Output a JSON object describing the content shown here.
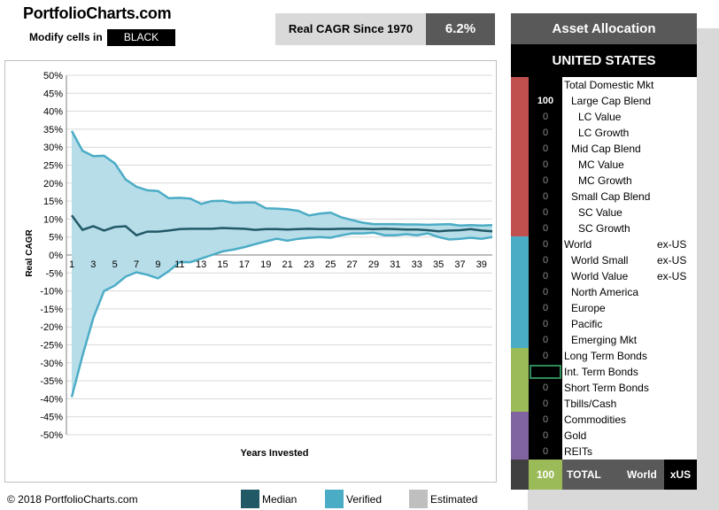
{
  "header": {
    "site_title": "PortfolioCharts.com",
    "modify_label": "Modify cells in",
    "modify_color": "BLACK",
    "cagr_label": "Real CAGR Since 1970",
    "cagr_value": "6.2%"
  },
  "chart_data": {
    "type": "area",
    "xlabel": "Years Invested",
    "ylabel": "Real CAGR",
    "x_tick_labels": [
      "1",
      "3",
      "5",
      "7",
      "9",
      "11",
      "13",
      "15",
      "17",
      "19",
      "21",
      "23",
      "25",
      "27",
      "29",
      "31",
      "33",
      "35",
      "37",
      "39"
    ],
    "y_tick_labels": [
      "50%",
      "45%",
      "40%",
      "35%",
      "30%",
      "25%",
      "20%",
      "15%",
      "10%",
      "5%",
      "0%",
      "-5%",
      "-10%",
      "-15%",
      "-20%",
      "-25%",
      "-30%",
      "-35%",
      "-40%",
      "-45%",
      "-50%"
    ],
    "ylim": [
      -50,
      50
    ],
    "x": [
      1,
      2,
      3,
      4,
      5,
      6,
      7,
      8,
      9,
      10,
      11,
      12,
      13,
      14,
      15,
      16,
      17,
      18,
      19,
      20,
      21,
      22,
      23,
      24,
      25,
      26,
      27,
      28,
      29,
      30,
      31,
      32,
      33,
      34,
      35,
      36,
      37,
      38,
      39,
      40
    ],
    "series": [
      {
        "name": "Median",
        "color": "#215967",
        "values": [
          11,
          7,
          8,
          6.8,
          7.8,
          8,
          5.5,
          6.5,
          6.5,
          6.8,
          7.2,
          7.3,
          7.3,
          7.3,
          7.5,
          7.4,
          7.3,
          7,
          7.2,
          7.2,
          7.1,
          7.2,
          7.3,
          7.2,
          7.2,
          7.3,
          7.3,
          7.3,
          7.2,
          7.3,
          7.2,
          7.1,
          7.1,
          6.9,
          6.6,
          6.8,
          6.9,
          7.2,
          6.8,
          6.6
        ]
      },
      {
        "name": "Verified",
        "color": "#4bacc6",
        "band": "max",
        "values": [
          34.5,
          29,
          27.5,
          27.6,
          25.5,
          21,
          19,
          18,
          17.8,
          15.8,
          15.9,
          15.7,
          14.2,
          15,
          15.1,
          14.5,
          14.6,
          14.6,
          13,
          12.9,
          12.7,
          12.3,
          11,
          11.5,
          11.8,
          10.5,
          9.7,
          9,
          8.6,
          8.6,
          8.6,
          8.5,
          8.5,
          8.4,
          8.5,
          8.6,
          8.2,
          8.3,
          8.2,
          8.3
        ]
      },
      {
        "name": "Verified",
        "color": "#4bacc6",
        "band": "min",
        "values": [
          -39.5,
          -28,
          -17.5,
          -10,
          -8.5,
          -6,
          -4.8,
          -5.5,
          -6.5,
          -4.5,
          -2,
          -2,
          -1,
          0,
          1,
          1.5,
          2.2,
          3,
          3.8,
          4.5,
          4,
          4.5,
          4.8,
          5,
          4.8,
          5.5,
          6,
          6,
          6.2,
          5.5,
          5.5,
          5.8,
          5.5,
          6,
          5,
          4.3,
          4.5,
          4.8,
          4.5,
          5
        ]
      }
    ],
    "legend": [
      {
        "label": "Median",
        "color": "#215967"
      },
      {
        "label": "Verified",
        "color": "#4bacc6"
      },
      {
        "label": "Estimated",
        "color": "#bfbfbf"
      }
    ],
    "band_fill": "#b7dde8",
    "grid": true,
    "legend_position": "bottom"
  },
  "footer": {
    "copyright": "© 2018 PortfolioCharts.com"
  },
  "allocation": {
    "title": "Asset Allocation",
    "country": "UNITED STATES",
    "group_colors": {
      "equity_us": "#c0504d",
      "equity_world": "#4bacc6",
      "bonds": "#9bbb59",
      "other": "#8064a2"
    },
    "rows": [
      {
        "value": "",
        "label": "Total Domestic Mkt",
        "suffix": "",
        "indent": 0
      },
      {
        "value": "100",
        "label": "Large Cap Blend",
        "suffix": "",
        "indent": 1
      },
      {
        "value": "0",
        "label": "LC Value",
        "suffix": "",
        "indent": 2
      },
      {
        "value": "0",
        "label": "LC Growth",
        "suffix": "",
        "indent": 2
      },
      {
        "value": "0",
        "label": "Mid Cap Blend",
        "suffix": "",
        "indent": 1
      },
      {
        "value": "0",
        "label": "MC Value",
        "suffix": "",
        "indent": 2
      },
      {
        "value": "0",
        "label": "MC Growth",
        "suffix": "",
        "indent": 2
      },
      {
        "value": "0",
        "label": "Small Cap Blend",
        "suffix": "",
        "indent": 1
      },
      {
        "value": "0",
        "label": "SC Value",
        "suffix": "",
        "indent": 2
      },
      {
        "value": "0",
        "label": "SC Growth",
        "suffix": "",
        "indent": 2
      },
      {
        "value": "0",
        "label": "World",
        "suffix": "ex-US",
        "indent": 0
      },
      {
        "value": "0",
        "label": "World Small",
        "suffix": "ex-US",
        "indent": 1
      },
      {
        "value": "0",
        "label": "World Value",
        "suffix": "ex-US",
        "indent": 1
      },
      {
        "value": "0",
        "label": "North America",
        "suffix": "",
        "indent": 1
      },
      {
        "value": "0",
        "label": "Europe",
        "suffix": "",
        "indent": 1
      },
      {
        "value": "0",
        "label": "Pacific",
        "suffix": "",
        "indent": 1
      },
      {
        "value": "0",
        "label": "Emerging Mkt",
        "suffix": "",
        "indent": 1
      },
      {
        "value": "0",
        "label": "Long Term Bonds",
        "suffix": "",
        "indent": 0
      },
      {
        "value": "",
        "label": "Int. Term Bonds",
        "suffix": "",
        "indent": 0,
        "selected": true
      },
      {
        "value": "0",
        "label": "Short Term Bonds",
        "suffix": "",
        "indent": 0
      },
      {
        "value": "0",
        "label": "Tbills/Cash",
        "suffix": "",
        "indent": 0
      },
      {
        "value": "0",
        "label": "Commodities",
        "suffix": "",
        "indent": 0
      },
      {
        "value": "0",
        "label": "Gold",
        "suffix": "",
        "indent": 0
      },
      {
        "value": "0",
        "label": "REITs",
        "suffix": "",
        "indent": 0
      }
    ],
    "total": {
      "value": "100",
      "label": "TOTAL",
      "world": "World",
      "xus": "xUS"
    }
  }
}
